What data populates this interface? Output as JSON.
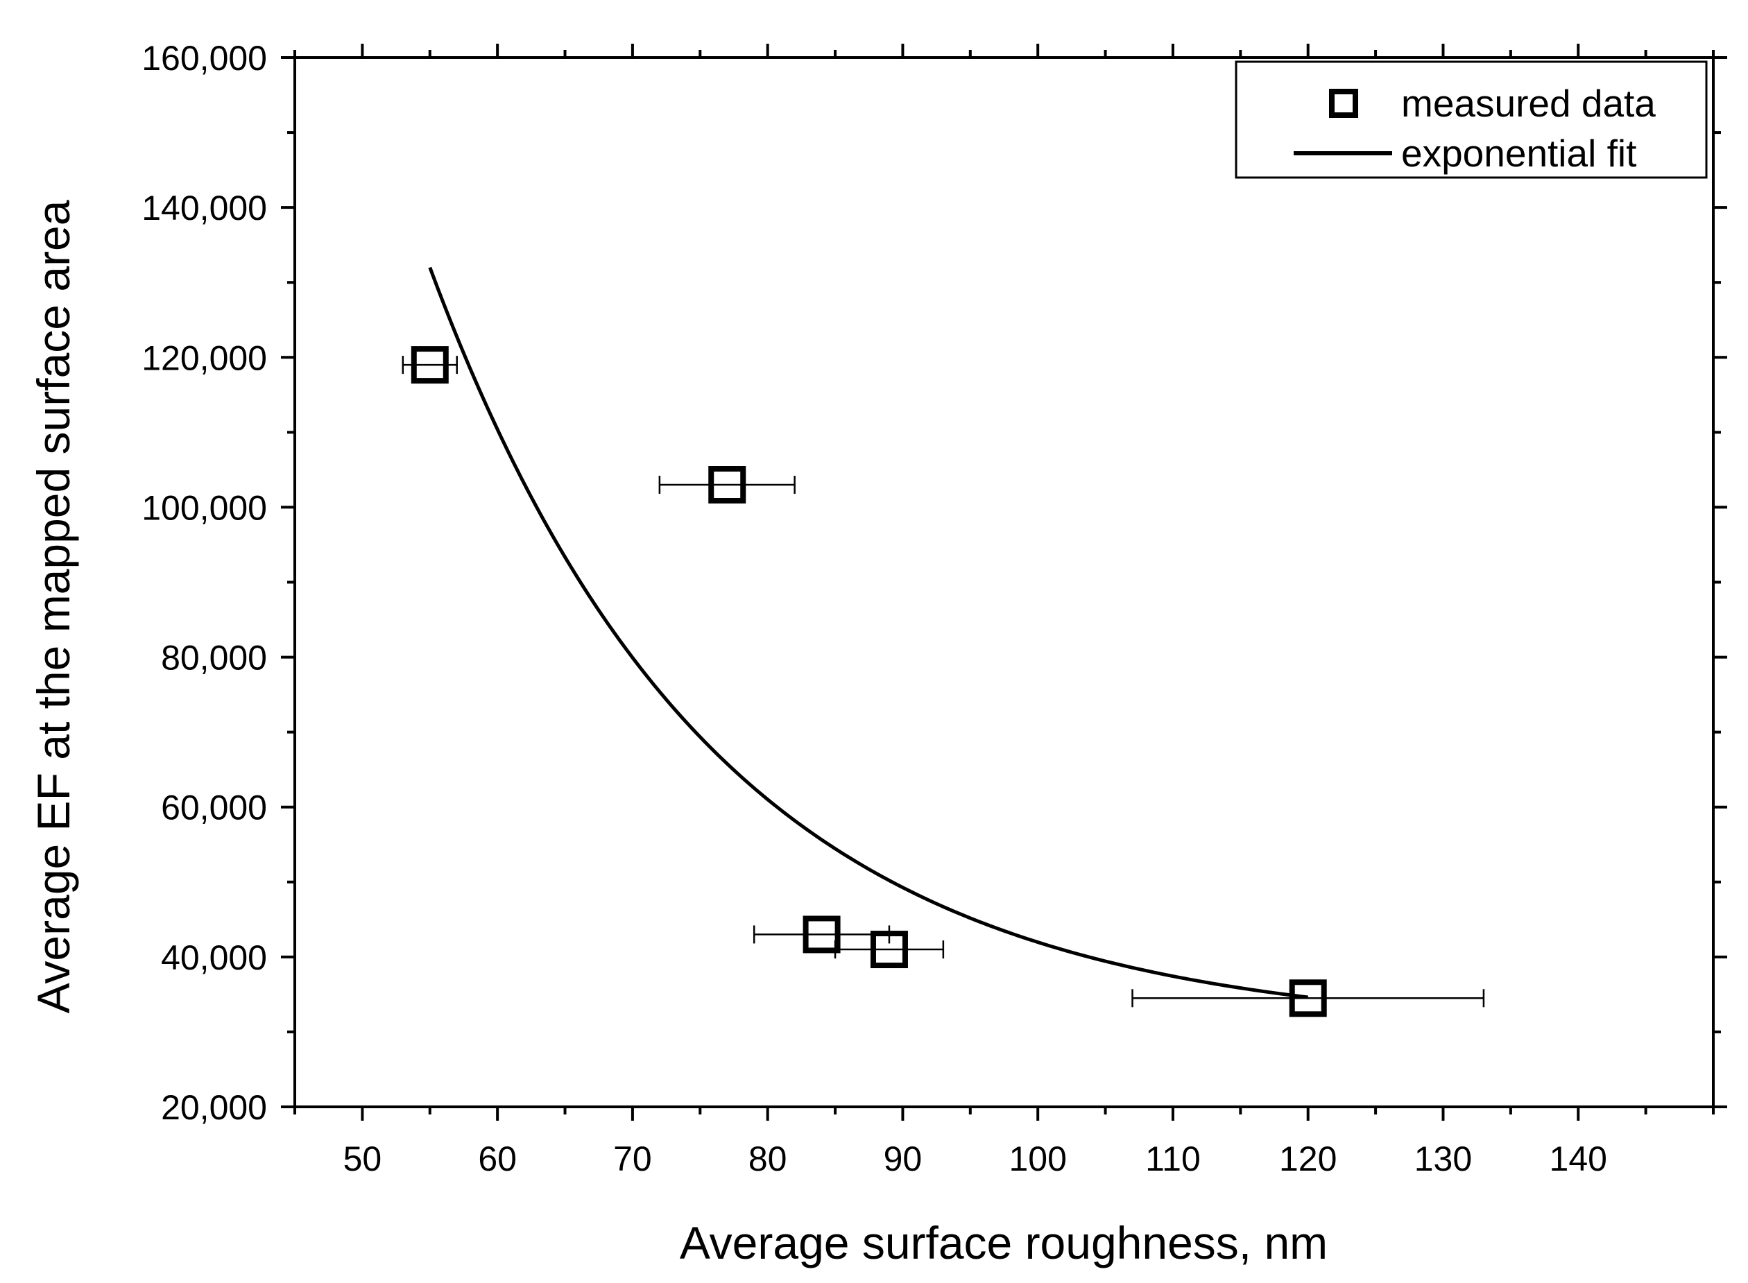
{
  "chart_data": {
    "type": "scatter",
    "title": "",
    "xlabel": "Average surface roughness, nm",
    "ylabel": "Average EF at the mapped surface area",
    "xlim": [
      45,
      150
    ],
    "ylim": [
      20000,
      160000
    ],
    "x_ticks": [
      50,
      60,
      70,
      80,
      90,
      100,
      110,
      120,
      130,
      140
    ],
    "x_tick_labels": [
      "50",
      "60",
      "70",
      "80",
      "90",
      "100",
      "110",
      "120",
      "130",
      "140"
    ],
    "y_ticks": [
      20000,
      40000,
      60000,
      80000,
      100000,
      120000,
      140000,
      160000
    ],
    "y_tick_labels": [
      "20,000",
      "40,000",
      "60,000",
      "80,000",
      "100,000",
      "120,000",
      "140,000",
      "160,000"
    ],
    "grid": false,
    "legend_position": "top-right",
    "series": [
      {
        "name": "measured data",
        "kind": "scatter",
        "marker": "open-square",
        "points": [
          {
            "x": 55,
            "y": 119000,
            "x_err_low": 53,
            "x_err_high": 57
          },
          {
            "x": 77,
            "y": 103000,
            "x_err_low": 72,
            "x_err_high": 82
          },
          {
            "x": 84,
            "y": 43000,
            "x_err_low": 79,
            "x_err_high": 89
          },
          {
            "x": 89,
            "y": 41000,
            "x_err_low": 85,
            "x_err_high": 93
          },
          {
            "x": 120,
            "y": 34500,
            "x_err_low": 107,
            "x_err_high": 133
          }
        ]
      },
      {
        "name": "exponential fit",
        "kind": "line",
        "x_range": [
          55,
          120
        ],
        "model": {
          "y0": 30000,
          "A": 102000,
          "x0": 55,
          "t": 21
        }
      }
    ]
  }
}
